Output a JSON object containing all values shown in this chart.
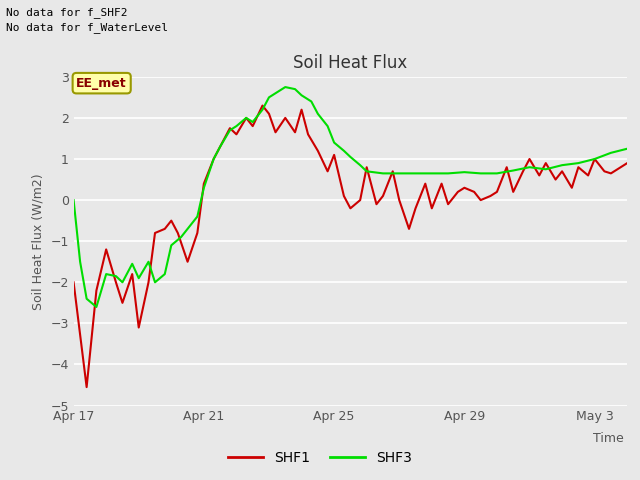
{
  "title": "Soil Heat Flux",
  "ylabel": "Soil Heat Flux (W/m2)",
  "xlabel": "Time",
  "background_color": "#e8e8e8",
  "plot_bg_color": "#e8e8e8",
  "ylim": [
    -5.0,
    3.0
  ],
  "yticks": [
    -5.0,
    -4.0,
    -3.0,
    -2.0,
    -1.0,
    0.0,
    1.0,
    2.0,
    3.0
  ],
  "no_data_text1": "No data for f_SHF2",
  "no_data_text2": "No data for f_WaterLevel",
  "annotation_text": "EE_met",
  "shf1_color": "#cc0000",
  "shf3_color": "#00dd00",
  "x_tick_labels": [
    "Apr 17",
    "Apr 21",
    "Apr 25",
    "Apr 29",
    "May 3"
  ],
  "x_tick_positions": [
    0,
    4,
    8,
    12,
    16
  ],
  "shf1_x": [
    0,
    0.4,
    0.7,
    1.0,
    1.3,
    1.5,
    1.8,
    2.0,
    2.3,
    2.5,
    2.8,
    3.0,
    3.2,
    3.5,
    3.8,
    4.0,
    4.3,
    4.5,
    4.8,
    5.0,
    5.3,
    5.5,
    5.8,
    6.0,
    6.2,
    6.5,
    6.8,
    7.0,
    7.2,
    7.5,
    7.8,
    8.0,
    8.3,
    8.5,
    8.8,
    9.0,
    9.3,
    9.5,
    9.8,
    10.0,
    10.3,
    10.5,
    10.8,
    11.0,
    11.3,
    11.5,
    11.8,
    12.0,
    12.3,
    12.5,
    12.8,
    13.0,
    13.3,
    13.5,
    13.8,
    14.0,
    14.3,
    14.5,
    14.8,
    15.0,
    15.3,
    15.5,
    15.8,
    16.0,
    16.3,
    16.5,
    17.0
  ],
  "shf1_y": [
    -2.0,
    -4.55,
    -2.2,
    -1.2,
    -2.0,
    -2.5,
    -1.8,
    -3.1,
    -2.0,
    -0.8,
    -0.7,
    -0.5,
    -0.8,
    -1.5,
    -0.8,
    0.4,
    1.0,
    1.3,
    1.75,
    1.6,
    2.0,
    1.8,
    2.3,
    2.1,
    1.65,
    2.0,
    1.65,
    2.2,
    1.6,
    1.2,
    0.7,
    1.1,
    0.1,
    -0.2,
    0.0,
    0.8,
    -0.1,
    0.1,
    0.7,
    0.0,
    -0.7,
    -0.2,
    0.4,
    -0.2,
    0.4,
    -0.1,
    0.2,
    0.3,
    0.2,
    0.0,
    0.1,
    0.2,
    0.8,
    0.2,
    0.7,
    1.0,
    0.6,
    0.9,
    0.5,
    0.7,
    0.3,
    0.8,
    0.6,
    1.0,
    0.7,
    0.65,
    0.9
  ],
  "shf3_x": [
    0,
    0.2,
    0.4,
    0.7,
    1.0,
    1.3,
    1.5,
    1.8,
    2.0,
    2.3,
    2.5,
    2.8,
    3.0,
    3.3,
    3.5,
    3.8,
    4.0,
    4.3,
    4.5,
    4.8,
    5.0,
    5.3,
    5.5,
    5.8,
    6.0,
    6.3,
    6.5,
    6.8,
    7.0,
    7.3,
    7.5,
    7.8,
    8.0,
    8.3,
    8.5,
    8.8,
    9.0,
    9.5,
    10.0,
    10.5,
    11.0,
    11.5,
    12.0,
    12.5,
    13.0,
    13.5,
    14.0,
    14.5,
    15.0,
    15.5,
    16.0,
    16.5,
    17.0
  ],
  "shf3_y": [
    0.0,
    -1.5,
    -2.4,
    -2.6,
    -1.8,
    -1.85,
    -2.0,
    -1.55,
    -1.9,
    -1.5,
    -2.0,
    -1.8,
    -1.1,
    -0.9,
    -0.7,
    -0.4,
    0.3,
    1.0,
    1.3,
    1.7,
    1.8,
    2.0,
    1.9,
    2.2,
    2.5,
    2.65,
    2.75,
    2.7,
    2.55,
    2.4,
    2.1,
    1.8,
    1.4,
    1.2,
    1.05,
    0.85,
    0.7,
    0.65,
    0.65,
    0.65,
    0.65,
    0.65,
    0.68,
    0.65,
    0.65,
    0.72,
    0.8,
    0.75,
    0.85,
    0.9,
    1.0,
    1.15,
    1.25
  ]
}
